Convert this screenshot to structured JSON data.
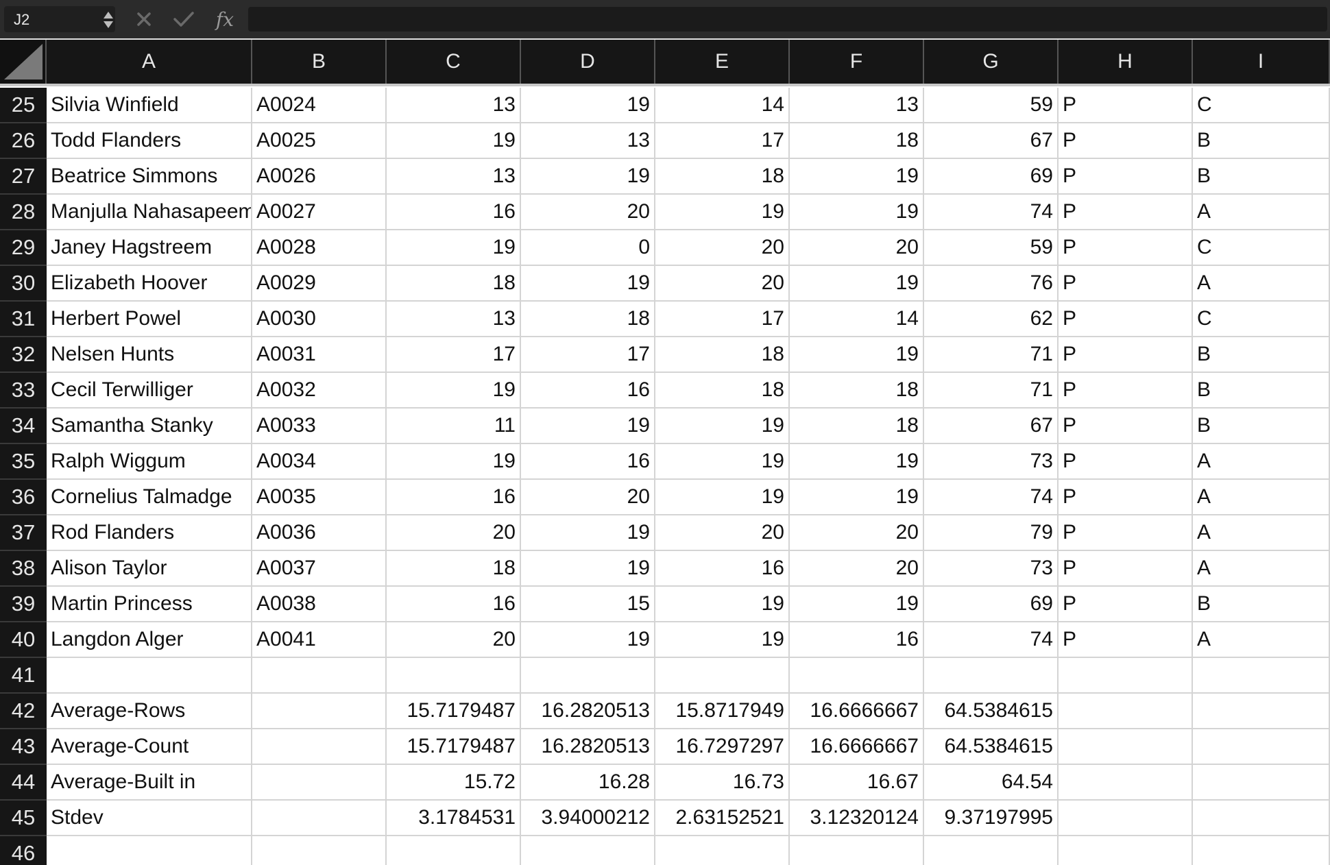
{
  "formula_bar": {
    "name_box": "J2",
    "cancel_icon": "close-icon",
    "enter_icon": "checkmark-icon",
    "function_label": "fx",
    "formula": ""
  },
  "columns": [
    "A",
    "B",
    "C",
    "D",
    "E",
    "F",
    "G",
    "H",
    "I"
  ],
  "rows": [
    {
      "n": "25",
      "cells": [
        "Silvia Winfield",
        "A0024",
        "13",
        "19",
        "14",
        "13",
        "59",
        "P",
        "C"
      ]
    },
    {
      "n": "26",
      "cells": [
        "Todd Flanders",
        "A0025",
        "19",
        "13",
        "17",
        "18",
        "67",
        "P",
        "B"
      ]
    },
    {
      "n": "27",
      "cells": [
        "Beatrice Simmons",
        "A0026",
        "13",
        "19",
        "18",
        "19",
        "69",
        "P",
        "B"
      ]
    },
    {
      "n": "28",
      "cells": [
        "Manjulla Nahasapeemapetilon",
        "A0027",
        "16",
        "20",
        "19",
        "19",
        "74",
        "P",
        "A"
      ]
    },
    {
      "n": "29",
      "cells": [
        "Janey Hagstreem",
        "A0028",
        "19",
        "0",
        "20",
        "20",
        "59",
        "P",
        "C"
      ]
    },
    {
      "n": "30",
      "cells": [
        "Elizabeth Hoover",
        "A0029",
        "18",
        "19",
        "20",
        "19",
        "76",
        "P",
        "A"
      ]
    },
    {
      "n": "31",
      "cells": [
        "Herbert Powel",
        "A0030",
        "13",
        "18",
        "17",
        "14",
        "62",
        "P",
        "C"
      ]
    },
    {
      "n": "32",
      "cells": [
        "Nelsen Hunts",
        "A0031",
        "17",
        "17",
        "18",
        "19",
        "71",
        "P",
        "B"
      ]
    },
    {
      "n": "33",
      "cells": [
        "Cecil Terwilliger",
        "A0032",
        "19",
        "16",
        "18",
        "18",
        "71",
        "P",
        "B"
      ]
    },
    {
      "n": "34",
      "cells": [
        "Samantha Stanky",
        "A0033",
        "11",
        "19",
        "19",
        "18",
        "67",
        "P",
        "B"
      ]
    },
    {
      "n": "35",
      "cells": [
        "Ralph Wiggum",
        "A0034",
        "19",
        "16",
        "19",
        "19",
        "73",
        "P",
        "A"
      ]
    },
    {
      "n": "36",
      "cells": [
        "Cornelius Talmadge",
        "A0035",
        "16",
        "20",
        "19",
        "19",
        "74",
        "P",
        "A"
      ]
    },
    {
      "n": "37",
      "cells": [
        "Rod Flanders",
        "A0036",
        "20",
        "19",
        "20",
        "20",
        "79",
        "P",
        "A"
      ]
    },
    {
      "n": "38",
      "cells": [
        "Alison Taylor",
        "A0037",
        "18",
        "19",
        "16",
        "20",
        "73",
        "P",
        "A"
      ]
    },
    {
      "n": "39",
      "cells": [
        "Martin Princess",
        "A0038",
        "16",
        "15",
        "19",
        "19",
        "69",
        "P",
        "B"
      ]
    },
    {
      "n": "40",
      "cells": [
        "Langdon Alger",
        "A0041",
        "20",
        "19",
        "19",
        "16",
        "74",
        "P",
        "A"
      ]
    },
    {
      "n": "41",
      "cells": [
        "",
        "",
        "",
        "",
        "",
        "",
        "",
        "",
        ""
      ]
    },
    {
      "n": "42",
      "cells": [
        "Average-Rows",
        "",
        "15.7179487",
        "16.2820513",
        "15.8717949",
        "16.6666667",
        "64.5384615",
        "",
        ""
      ]
    },
    {
      "n": "43",
      "cells": [
        "Average-Count",
        "",
        "15.7179487",
        "16.2820513",
        "16.7297297",
        "16.6666667",
        "64.5384615",
        "",
        ""
      ]
    },
    {
      "n": "44",
      "cells": [
        "Average-Built in",
        "",
        "15.72",
        "16.28",
        "16.73",
        "16.67",
        "64.54",
        "",
        ""
      ]
    },
    {
      "n": "45",
      "cells": [
        "Stdev",
        "",
        "3.1784531",
        "3.94000212",
        "2.63152521",
        "3.12320124",
        "9.37197995",
        "",
        ""
      ]
    },
    {
      "n": "46",
      "cells": [
        "",
        "",
        "",
        "",
        "",
        "",
        "",
        "",
        ""
      ]
    }
  ]
}
